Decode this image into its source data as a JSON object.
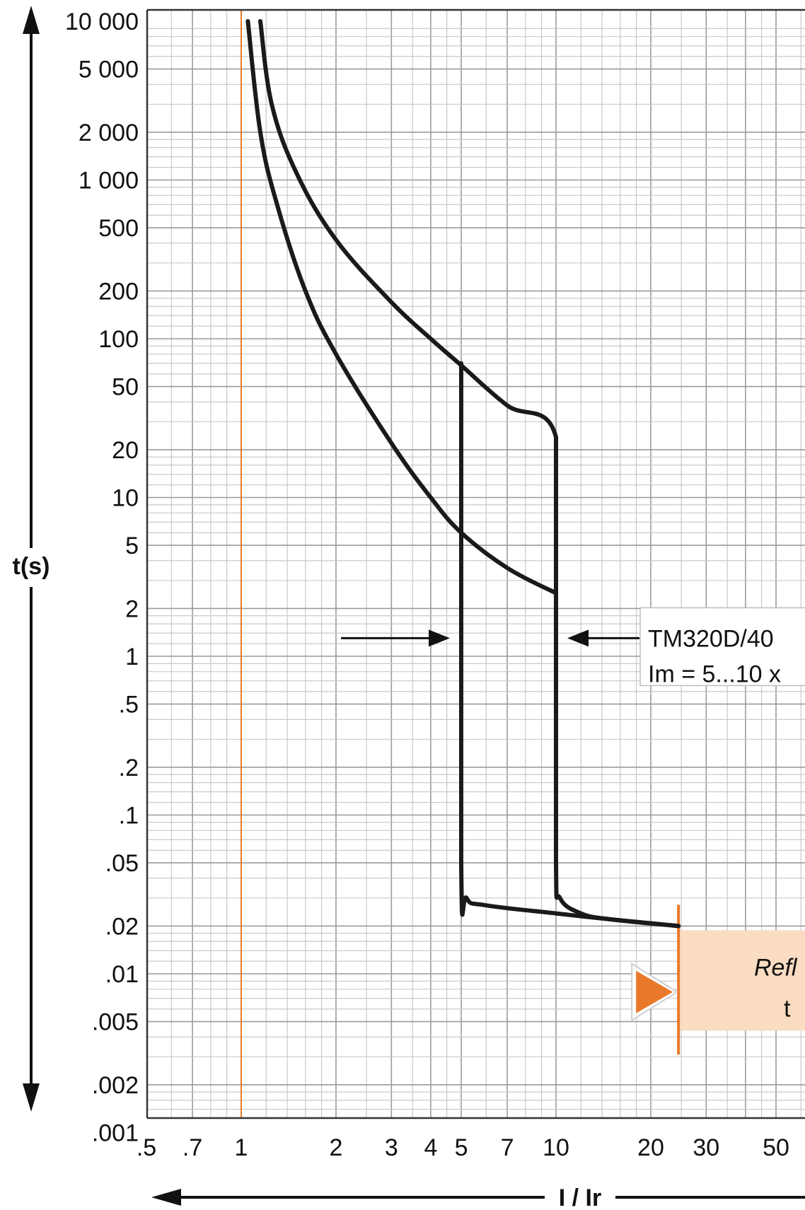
{
  "chart_data": {
    "type": "line",
    "title": "",
    "xlabel": "I / Ir",
    "ylabel": "t(s)",
    "x_scale": "log",
    "y_scale": "log",
    "xlim": [
      0.4,
      80
    ],
    "ylim": [
      0.001,
      10000
    ],
    "grid": true,
    "x_tick_values": [
      0.5,
      0.7,
      1,
      2,
      3,
      4,
      5,
      7,
      10,
      20,
      30,
      50
    ],
    "x_tick_labels": [
      ".5",
      ".7",
      "1",
      "2",
      "3",
      "4",
      "5",
      "7",
      "10",
      "20",
      "30",
      "50"
    ],
    "y_tick_values": [
      10000,
      5000,
      2000,
      1000,
      500,
      200,
      100,
      50,
      20,
      10,
      5,
      2,
      1,
      0.5,
      0.2,
      0.1,
      0.05,
      0.02,
      0.01,
      0.005,
      0.002,
      0.001
    ],
    "y_tick_labels": [
      "10 000",
      "5 000",
      "2 000",
      "1 000",
      "500",
      "200",
      "100",
      "50",
      "20",
      "10",
      "5",
      "2",
      "1",
      ".5",
      ".2",
      ".1",
      ".05",
      ".02",
      ".01",
      ".005",
      ".002",
      ".001"
    ],
    "series": [
      {
        "role": "upper thermal curve with magnetic drop at 10",
        "points": [
          [
            1.15,
            10000
          ],
          [
            1.25,
            3000
          ],
          [
            1.5,
            1100
          ],
          [
            2,
            420
          ],
          [
            3,
            170
          ],
          [
            4,
            100
          ],
          [
            5,
            68
          ],
          [
            7,
            38
          ],
          [
            10,
            24
          ],
          [
            10,
            2.5
          ],
          [
            10,
            0.05
          ],
          [
            10.3,
            0.03
          ],
          [
            12,
            0.024
          ],
          [
            15,
            0.022
          ],
          [
            24.5,
            0.02
          ]
        ]
      },
      {
        "role": "lower thermal curve with magnetic drop at 5",
        "points": [
          [
            1.05,
            10000
          ],
          [
            1.15,
            2000
          ],
          [
            1.3,
            700
          ],
          [
            1.6,
            200
          ],
          [
            2,
            80
          ],
          [
            3,
            22
          ],
          [
            4,
            10
          ],
          [
            5,
            6
          ],
          [
            7,
            3.6
          ],
          [
            10,
            2.5
          ]
        ]
      },
      {
        "role": "magnetic trip at 5",
        "points": [
          [
            5,
            70
          ],
          [
            5,
            0.05
          ],
          [
            5.2,
            0.03
          ],
          [
            6,
            0.027
          ],
          [
            10,
            0.024
          ],
          [
            15,
            0.022
          ],
          [
            24.5,
            0.02
          ]
        ]
      }
    ],
    "reference_line_x": 1,
    "reflex_limit_x": 24.5,
    "annotation": {
      "line1": "TM320D/40",
      "line2": "Im = 5...10 x",
      "arrow_x_left": 5,
      "arrow_x_right": 10,
      "arrow_y": 1.3
    },
    "reflex_box": {
      "title": "Refl",
      "text": "t"
    },
    "colors": {
      "curve": "#1a1a1a",
      "grid": "#9a9a9a",
      "grid_fine": "#c4c4c4",
      "accent_orange": "#e8792a",
      "reflex_fill": "#f9dcc1"
    }
  }
}
